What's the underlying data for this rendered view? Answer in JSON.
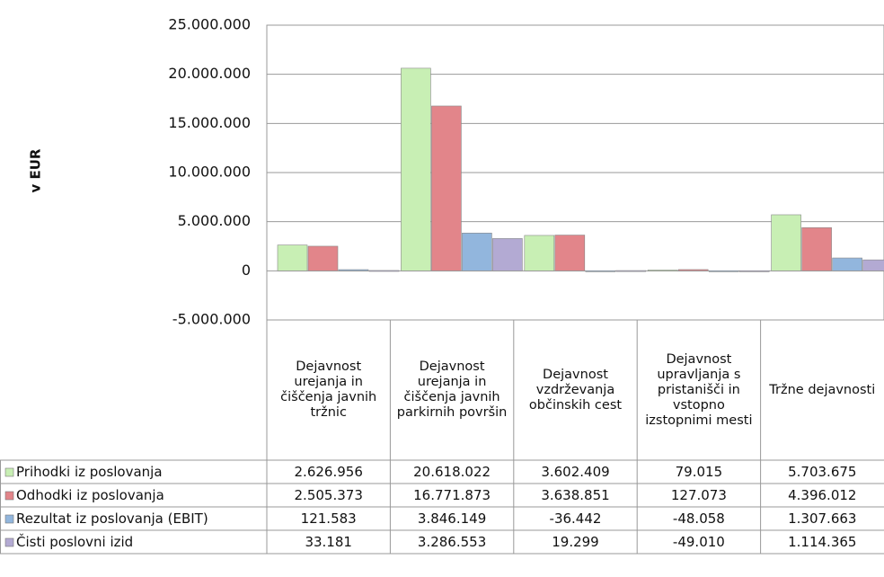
{
  "chart_data": {
    "type": "bar",
    "y_axis_label": "v EUR",
    "categories": [
      "Dejavnost urejanja in čiščenja javnih tržnic",
      "Dejavnost urejanja in čiščenja javnih parkirnih površin",
      "Dejavnost vzdrževanja občinskih cest",
      "Dejavnost upravljanja s pristanišči in vstopno izstopnimi mesti",
      "Tržne dejavnosti"
    ],
    "series": [
      {
        "name": "Prihodki iz poslovanja",
        "color": "#c8efb4",
        "values": [
          2626956,
          20618022,
          3602409,
          79015,
          5703675
        ],
        "value_labels": [
          "2.626.956",
          "20.618.022",
          "3.602.409",
          "79.015",
          "5.703.675"
        ]
      },
      {
        "name": "Odhodki iz poslovanja",
        "color": "#e2858a",
        "values": [
          2505373,
          16771873,
          3638851,
          127073,
          4396012
        ],
        "value_labels": [
          "2.505.373",
          "16.771.873",
          "3.638.851",
          "127.073",
          "4.396.012"
        ]
      },
      {
        "name": "Rezultat iz poslovanja (EBIT)",
        "color": "#92b6dd",
        "values": [
          121583,
          3846149,
          -36442,
          -48058,
          1307663
        ],
        "value_labels": [
          "121.583",
          "3.846.149",
          "-36.442",
          "-48.058",
          "1.307.663"
        ]
      },
      {
        "name": "Čisti poslovni izid",
        "color": "#b3aad3",
        "values": [
          33181,
          3286553,
          19299,
          -49010,
          1114365
        ],
        "value_labels": [
          "33.181",
          "3.286.553",
          "19.299",
          "-49.010",
          "1.114.365"
        ]
      }
    ],
    "ylim": [
      -5000000,
      25000000
    ],
    "yticks": [
      {
        "value": -5000000,
        "label": "-5.000.000"
      },
      0,
      {
        "value": 5000000,
        "label": "5.000.000"
      },
      {
        "value": 10000000,
        "label": "10.000.000"
      },
      {
        "value": 15000000,
        "label": "15.000.000"
      },
      {
        "value": 20000000,
        "label": "20.000.000"
      },
      {
        "value": 25000000,
        "label": "25.000.000"
      }
    ],
    "grid": true
  }
}
